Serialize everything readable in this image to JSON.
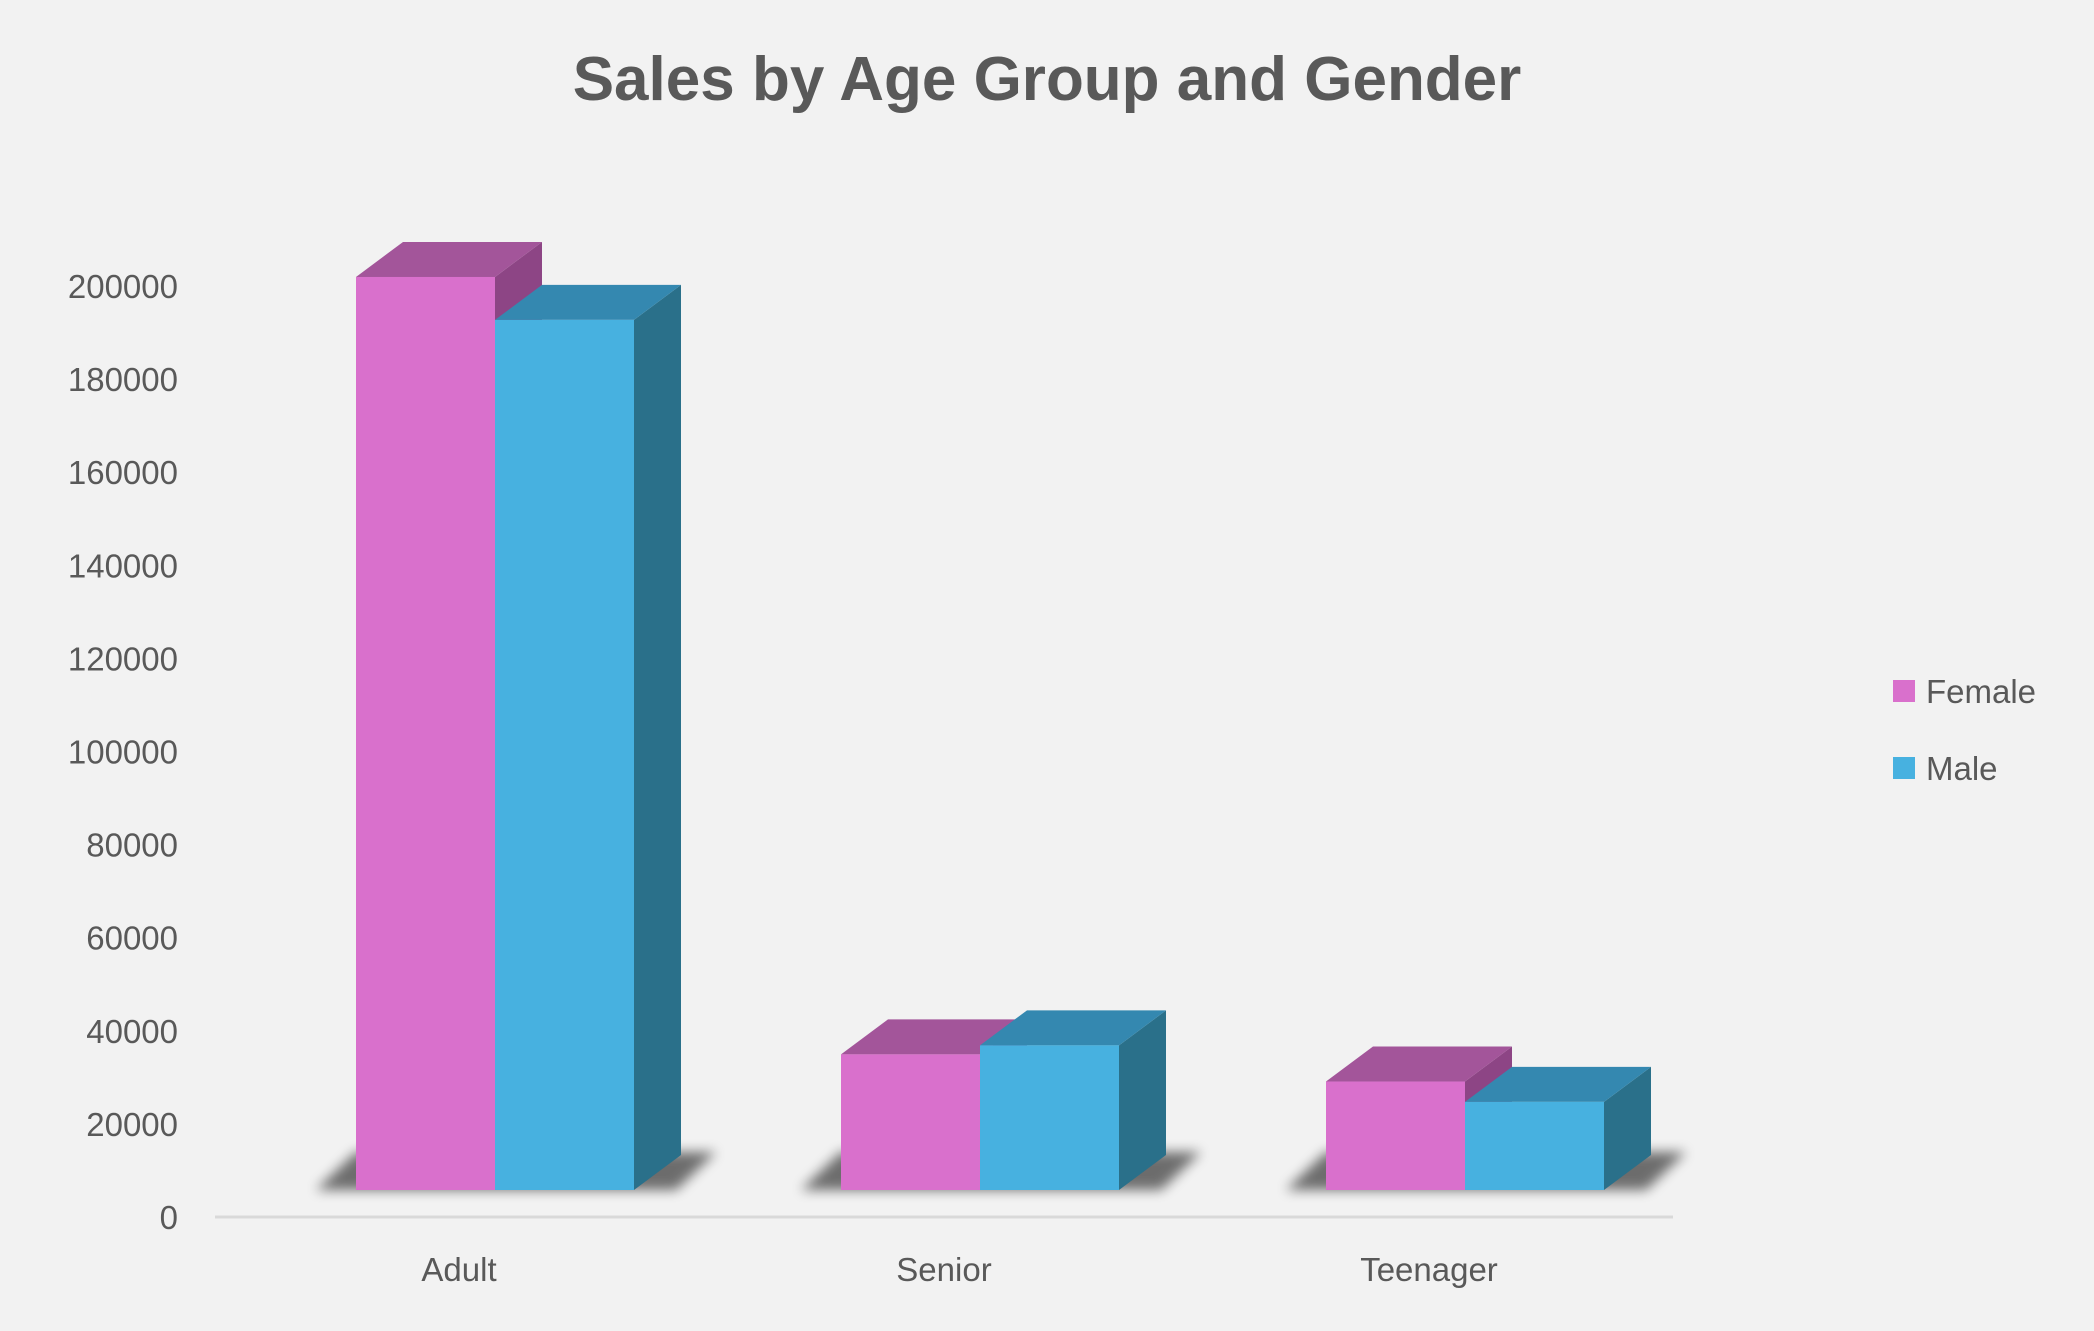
{
  "chart_data": {
    "type": "bar",
    "title": "Sales by Age Group and Gender",
    "xlabel": "",
    "ylabel": "",
    "categories": [
      "Adult",
      "Senior",
      "Teenager"
    ],
    "series": [
      {
        "name": "Female",
        "values": [
          202000,
          30000,
          24000
        ]
      },
      {
        "name": "Male",
        "values": [
          192500,
          32000,
          19500
        ]
      }
    ],
    "ylim": [
      0,
      200000
    ],
    "yticks": [
      0,
      20000,
      40000,
      60000,
      80000,
      100000,
      120000,
      140000,
      160000,
      180000,
      200000
    ],
    "grid": false,
    "legend_position": "right",
    "style": "3d-clustered-column",
    "colors": {
      "Female": {
        "front": "#d970cc",
        "top": "#a3559a",
        "side": "#8d4585"
      },
      "Male": {
        "front": "#47b1e0",
        "top": "#3488b0",
        "side": "#2a708a"
      },
      "axis_line": "#d9d9d9",
      "text": "#595959",
      "background": "#f2f2f2"
    }
  }
}
